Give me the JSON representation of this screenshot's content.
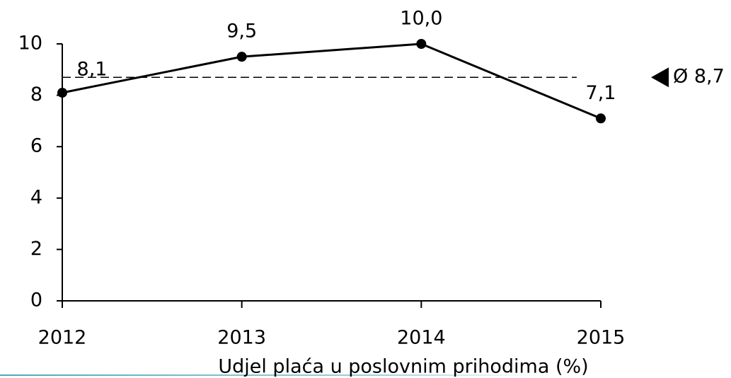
{
  "chart_data": {
    "type": "line",
    "x_label": "Udjel plaća u poslovnim prihodima (%)",
    "categories": [
      "2012",
      "2013",
      "2014",
      "2015"
    ],
    "values": [
      8.1,
      9.5,
      10.0,
      7.1
    ],
    "value_labels": [
      "8,1",
      "9,5",
      "10,0",
      "7,1"
    ],
    "color": "#000000",
    "ylim": [
      0,
      10
    ],
    "yticks": [
      0,
      2,
      4,
      6,
      8,
      10
    ],
    "average": {
      "value": 8.7,
      "label": "Ø 8,7"
    }
  }
}
